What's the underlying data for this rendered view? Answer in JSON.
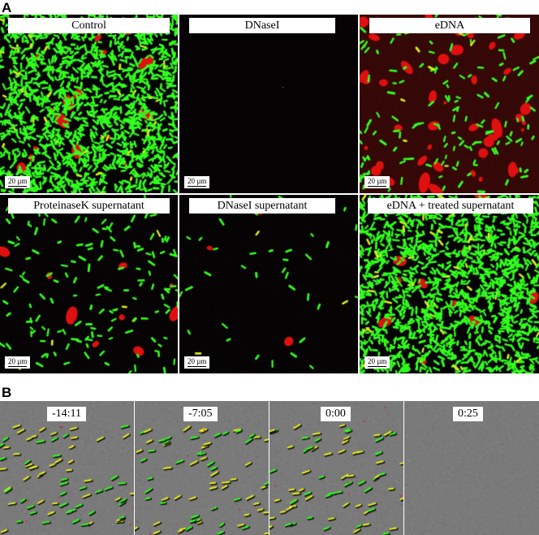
{
  "panel_a": {
    "letter": "A",
    "tiles": [
      {
        "label": "Control",
        "scale": "20 µm",
        "density": "high",
        "red": "medium"
      },
      {
        "label": "DNaseI",
        "scale": "20 µm",
        "density": "none",
        "red": "none"
      },
      {
        "label": "eDNA",
        "scale": "20 µm",
        "density": "low",
        "red": "high"
      },
      {
        "label": "ProteinaseK supernatant",
        "scale": "20 µm",
        "density": "low",
        "red": "low"
      },
      {
        "label": "DNaseI supernatant",
        "scale": "20 µm",
        "density": "very-low",
        "red": "very-low"
      },
      {
        "label": "eDNA + treated supernatant",
        "scale": "20 µm",
        "density": "high",
        "red": "low"
      }
    ]
  },
  "panel_b": {
    "letter": "B",
    "frames": [
      {
        "time": "-14:11",
        "cells": "present"
      },
      {
        "time": "-7:05",
        "cells": "present"
      },
      {
        "time": "0:00",
        "cells": "present"
      },
      {
        "time": "0:25",
        "cells": "absent"
      }
    ]
  },
  "colors": {
    "cell_green": "#32ff1e",
    "stain_red": "#e01010",
    "background_dark": "#050303",
    "background_gray": "#7a7a7a"
  }
}
